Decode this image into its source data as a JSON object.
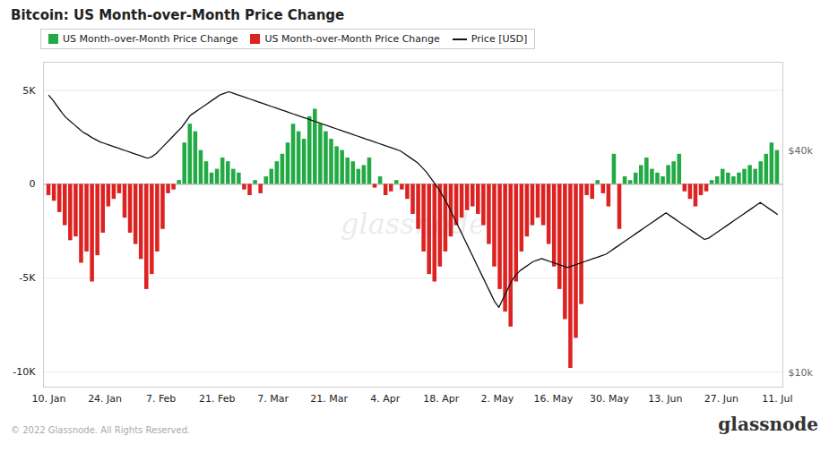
{
  "chart_data": {
    "type": "bar",
    "title": "Bitcoin: US Month-over-Month Price Change",
    "xticks": [
      "10. Jan",
      "24. Jan",
      "7. Feb",
      "21. Feb",
      "7. Mar",
      "21. Mar",
      "4. Apr",
      "18. Apr",
      "2. May",
      "16. May",
      "30. May",
      "13. Jun",
      "27. Jun",
      "11. Jul"
    ],
    "series": [
      {
        "name": "US Month-over-Month Price Change",
        "type": "bar",
        "color": "#22aa44",
        "values": [
          null,
          null,
          null,
          null,
          null,
          null,
          null,
          null,
          null,
          null,
          null,
          null,
          null,
          null,
          null,
          null,
          null,
          null,
          null,
          null,
          null,
          null,
          null,
          null,
          200,
          2200,
          3200,
          2800,
          1800,
          1200,
          600,
          800,
          1400,
          1200,
          800,
          600,
          null,
          null,
          200,
          null,
          400,
          800,
          1200,
          1600,
          2200,
          3200,
          2800,
          2400,
          3600,
          4000,
          3200,
          2800,
          2400,
          2000,
          1800,
          1400,
          1200,
          800,
          1000,
          1400,
          null,
          400,
          null,
          null,
          200,
          null,
          null,
          null,
          null,
          null,
          null,
          null,
          null,
          null,
          null,
          null,
          null,
          null,
          null,
          null,
          null,
          null,
          null,
          null,
          null,
          null,
          null,
          null,
          null,
          null,
          null,
          null,
          null,
          null,
          null,
          null,
          null,
          null,
          null,
          null,
          null,
          200,
          null,
          null,
          1600,
          null,
          400,
          200,
          600,
          1000,
          1400,
          800,
          600,
          400,
          1000,
          1200,
          1600,
          null,
          null,
          null,
          null,
          null,
          200,
          400,
          800,
          600,
          400,
          600,
          800,
          1000,
          800,
          1200,
          1600,
          2200,
          1800
        ]
      },
      {
        "name": "US Month-over-Month Price Change",
        "type": "bar",
        "color": "#dd2222",
        "values": [
          -600,
          -900,
          -1500,
          -2200,
          -3000,
          -2800,
          -4200,
          -3600,
          -5200,
          -3800,
          -2600,
          -1200,
          -800,
          -500,
          -1800,
          -2600,
          -3200,
          -4000,
          -5600,
          -4800,
          -3600,
          -2400,
          -500,
          -300,
          null,
          null,
          null,
          null,
          null,
          null,
          null,
          null,
          null,
          null,
          null,
          null,
          -300,
          -600,
          null,
          -500,
          null,
          null,
          null,
          null,
          null,
          null,
          null,
          null,
          null,
          null,
          null,
          null,
          null,
          null,
          null,
          null,
          null,
          null,
          null,
          null,
          -200,
          null,
          -600,
          -400,
          null,
          -300,
          -800,
          -1600,
          -2400,
          -3600,
          -4800,
          -5200,
          -4400,
          -3600,
          -2800,
          -2200,
          -1800,
          -1400,
          -1200,
          -1600,
          -2200,
          -3200,
          -4400,
          -5600,
          -6800,
          -7600,
          -5200,
          -3600,
          -2800,
          -2200,
          -1800,
          -2200,
          -3200,
          -4400,
          -5600,
          -7200,
          -9800,
          -8200,
          -6400,
          -600,
          -800,
          null,
          -500,
          -1200,
          null,
          -2400,
          null,
          null,
          null,
          null,
          null,
          null,
          null,
          null,
          null,
          null,
          null,
          -400,
          -800,
          -1200,
          -600,
          -400,
          null,
          null,
          null,
          null,
          null,
          null,
          null,
          null,
          null,
          null,
          null,
          null,
          null
        ]
      },
      {
        "name": "Price [USD]",
        "type": "line",
        "color": "#111111",
        "axis": "y2",
        "values": [
          47500,
          46800,
          46000,
          45200,
          44500,
          44000,
          43500,
          43000,
          42500,
          42200,
          41800,
          41500,
          41200,
          41000,
          40800,
          40600,
          40400,
          40200,
          40000,
          39800,
          39600,
          39400,
          39200,
          39000,
          39200,
          39600,
          40200,
          40800,
          41400,
          42000,
          42600,
          43200,
          44000,
          44800,
          45200,
          45600,
          46000,
          46400,
          46800,
          47200,
          47600,
          47800,
          48000,
          47800,
          47600,
          47400,
          47200,
          47000,
          46800,
          46600,
          46400,
          46200,
          46000,
          45800,
          45600,
          45400,
          45200,
          45000,
          44800,
          44600,
          44400,
          44200,
          44000,
          43800,
          43600,
          43400,
          43200,
          43000,
          42800,
          42600,
          42400,
          42200,
          42000,
          41800,
          41600,
          41400,
          41200,
          41000,
          40800,
          40600,
          40400,
          40200,
          40000,
          39600,
          39200,
          38800,
          38400,
          37800,
          37200,
          36400,
          35600,
          34800,
          33800,
          32800,
          31600,
          30400,
          29200,
          28000,
          26800,
          25600,
          24400,
          23200,
          22000,
          20800,
          19600,
          18800,
          20000,
          21200,
          22400,
          23200,
          23800,
          24200,
          24600,
          25000,
          25200,
          25400,
          25200,
          25000,
          24800,
          24600,
          24400,
          24200,
          24400,
          24600,
          24800,
          25000,
          25200,
          25400,
          25600,
          25800,
          26000,
          26400,
          26800,
          27200,
          27600,
          28000,
          28400,
          28800,
          29200,
          29600,
          30000,
          30400,
          30800,
          31200,
          31600,
          31200,
          30800,
          30400,
          30000,
          29600,
          29200,
          28800,
          28400,
          28000,
          28200,
          28600,
          29000,
          29400,
          29800,
          30200,
          30600,
          31000,
          31400,
          31800,
          32200,
          32600,
          33000,
          32600,
          32200,
          31800,
          31400
        ]
      }
    ],
    "ylim": [
      -10800,
      6500
    ],
    "yticks": [
      {
        "value": -10000,
        "label": "-10K"
      },
      {
        "value": -5000,
        "label": "-5K"
      },
      0,
      {
        "value": 5000,
        "label": "5K"
      }
    ],
    "y2lim": [
      8000,
      52000
    ],
    "y2ticks": [
      {
        "value": 10000,
        "label": "$10k"
      },
      {
        "value": 40000,
        "label": "$40k"
      }
    ],
    "grid": true,
    "annotations": [
      "glassn​ode",
      "© 2022 Glassnode. All Rights Reserved.",
      "glassnode"
    ]
  }
}
